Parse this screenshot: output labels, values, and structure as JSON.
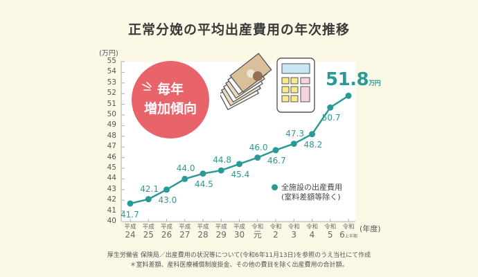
{
  "title": "正常分娩の平均出産費用の年次推移",
  "y_unit": "(万円)",
  "x_unit": "(年度)",
  "badge": {
    "line1": "毎年",
    "line2": "増加傾向",
    "color": "#e8636a"
  },
  "highlight": {
    "value": "51.8",
    "unit": "万円"
  },
  "legend": {
    "line1": "全施設の出産費用",
    "line2": "(室料差額等除く)",
    "color": "#2a9a96"
  },
  "notes": {
    "source": "厚生労働省 保険局／出産費用の状況等について(令和6年11月13日)を参照のうえ当社にて作成",
    "footnote": "＊室料差額、産科医療補償制度掛金、その他の費目を除く出産費用の合計額。"
  },
  "chart_data": {
    "type": "line",
    "title": "正常分娩の平均出産費用の年次推移",
    "xlabel": "(年度)",
    "ylabel": "(万円)",
    "ylim": [
      40,
      55
    ],
    "yticks": [
      40,
      41,
      42,
      43,
      44,
      45,
      46,
      47,
      48,
      49,
      50,
      51,
      52,
      53,
      54,
      55
    ],
    "grid": false,
    "legend_position": "inside-right",
    "categories": [
      {
        "era": "平成",
        "year": "24"
      },
      {
        "era": "平成",
        "year": "25"
      },
      {
        "era": "平成",
        "year": "26"
      },
      {
        "era": "平成",
        "year": "27"
      },
      {
        "era": "平成",
        "year": "28"
      },
      {
        "era": "平成",
        "year": "29"
      },
      {
        "era": "平成",
        "year": "30"
      },
      {
        "era": "令和",
        "year": "元"
      },
      {
        "era": "令和",
        "year": "2"
      },
      {
        "era": "令和",
        "year": "3"
      },
      {
        "era": "令和",
        "year": "4"
      },
      {
        "era": "令和",
        "year": "5"
      },
      {
        "era": "令和",
        "year": "6",
        "sub": "上半期"
      }
    ],
    "series": [
      {
        "name": "全施設の出産費用(室料差額等除く)",
        "color": "#2a9a96",
        "values": [
          41.7,
          42.1,
          43.0,
          44.0,
          44.5,
          44.8,
          45.4,
          46.0,
          46.7,
          47.3,
          48.2,
          50.7,
          51.8
        ]
      }
    ]
  }
}
